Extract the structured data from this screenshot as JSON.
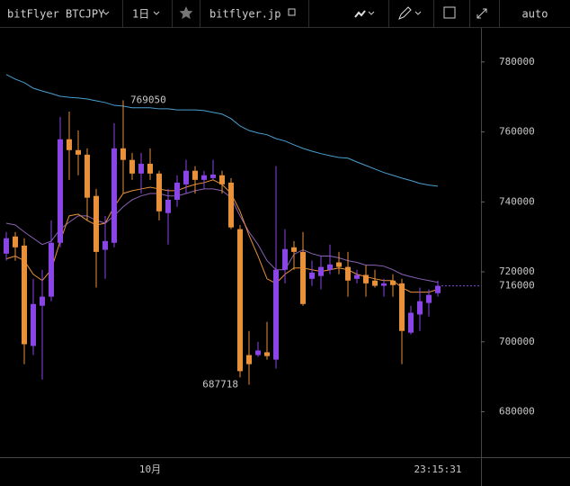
{
  "toolbar": {
    "symbol": "bitFlyer BTCJPY",
    "interval": "1日",
    "source": "bitflyer.jp",
    "scale_mode": "auto"
  },
  "chart_data": {
    "type": "candlestick",
    "up_color": "#8a45e6",
    "down_color": "#e8913a",
    "ylim": [
      667000,
      790000
    ],
    "yticks": [
      680000,
      700000,
      720000,
      740000,
      760000,
      780000
    ],
    "grid": false,
    "categories": [
      null,
      null,
      null,
      null,
      null,
      null,
      null,
      null,
      null,
      null,
      null,
      null,
      null,
      null,
      null,
      null,
      "10月",
      null,
      null,
      null,
      null,
      null,
      null,
      null,
      null,
      null,
      null,
      null,
      null,
      null,
      null,
      null,
      null,
      null,
      null,
      null,
      null,
      null,
      null,
      null,
      null,
      null,
      null,
      null,
      null,
      null,
      null,
      null,
      null
    ],
    "countdown": "23:15:31",
    "open": [
      725200,
      730100,
      727500,
      698800,
      710300,
      712900,
      728300,
      757900,
      754800,
      753500,
      741700,
      726300,
      728300,
      755300,
      752000,
      748100,
      750900,
      748100,
      736800,
      740600,
      745000,
      748900,
      746300,
      746800,
      747600,
      745500,
      732200,
      696200,
      696200,
      697000,
      694900,
      720600,
      727000,
      725700,
      718000,
      718800,
      720600,
      722700,
      721400,
      718000,
      719100,
      717500,
      716000,
      717500,
      716700,
      702600,
      707800,
      711100,
      713900
    ],
    "high": [
      731400,
      731400,
      729600,
      718000,
      720600,
      734700,
      764300,
      765800,
      760400,
      755300,
      743700,
      736000,
      762500,
      769050,
      754000,
      754000,
      755300,
      748900,
      743700,
      747600,
      752000,
      750200,
      748900,
      752000,
      748900,
      746800,
      733400,
      703100,
      700000,
      705700,
      750200,
      732200,
      728800,
      731400,
      723200,
      724500,
      727800,
      725700,
      725700,
      720600,
      721900,
      720600,
      718000,
      719300,
      718000,
      710300,
      715500,
      715000,
      717500
    ],
    "low": [
      723200,
      723200,
      693600,
      696200,
      689200,
      711600,
      727000,
      746300,
      747600,
      734700,
      715500,
      718000,
      727000,
      742400,
      746300,
      742400,
      746300,
      734700,
      727800,
      738600,
      742400,
      742400,
      743700,
      746300,
      742400,
      732200,
      689800,
      687718,
      695700,
      694900,
      692300,
      716700,
      720600,
      710300,
      716000,
      715000,
      719300,
      719300,
      712900,
      716700,
      712900,
      715500,
      712900,
      712900,
      693600,
      702100,
      703100,
      707200,
      712900
    ],
    "close": [
      729600,
      727000,
      699300,
      710800,
      712900,
      728300,
      757900,
      754800,
      753500,
      741200,
      725700,
      728800,
      755300,
      752000,
      748100,
      750900,
      748100,
      737300,
      740600,
      745500,
      748900,
      746300,
      747600,
      747800,
      745000,
      732700,
      691600,
      693600,
      697500,
      695900,
      720600,
      726500,
      725700,
      710800,
      719800,
      721400,
      722100,
      721400,
      717500,
      719100,
      716700,
      716000,
      716700,
      716200,
      703100,
      708300,
      711600,
      713400,
      716000
    ],
    "series": [
      {
        "color": "#4a9fd0",
        "values": [
          776400,
          775100,
          774100,
          772500,
          771700,
          771000,
          770200,
          769900,
          769700,
          769400,
          768900,
          768400,
          767600,
          767400,
          766900,
          766900,
          766900,
          766600,
          766600,
          766300,
          766300,
          766300,
          766100,
          765600,
          765100,
          763800,
          761700,
          760400,
          759700,
          759200,
          758100,
          757400,
          756300,
          755300,
          754500,
          753800,
          753200,
          752700,
          752500,
          751400,
          750400,
          749400,
          748400,
          747600,
          746800,
          746100,
          745300,
          744800,
          744500
        ]
      },
      {
        "color": "#8a62b4",
        "values": [
          733900,
          733400,
          731400,
          729600,
          727800,
          728800,
          732200,
          734200,
          736000,
          736000,
          734700,
          733900,
          736000,
          738600,
          740600,
          741700,
          742400,
          742400,
          741700,
          741700,
          742400,
          743200,
          743700,
          743700,
          743200,
          741200,
          736000,
          731400,
          727800,
          723200,
          720600,
          720600,
          725000,
          726300,
          725200,
          724500,
          724500,
          724000,
          723200,
          722700,
          721900,
          721900,
          721600,
          720600,
          719300,
          718600,
          718000,
          717500,
          717000
        ]
      },
      {
        "color": "#e8913a",
        "values": [
          723700,
          724500,
          723200,
          719300,
          717500,
          720600,
          728800,
          736000,
          736500,
          734700,
          733400,
          733900,
          738600,
          742400,
          743200,
          743700,
          744200,
          743700,
          743200,
          743200,
          744200,
          745000,
          745500,
          746300,
          745000,
          742400,
          737300,
          730400,
          724500,
          718000,
          716700,
          719300,
          721100,
          721100,
          720600,
          720100,
          720600,
          721100,
          720600,
          719300,
          718600,
          718000,
          717500,
          717500,
          715500,
          714200,
          714200,
          714200,
          715000
        ]
      }
    ]
  }
}
